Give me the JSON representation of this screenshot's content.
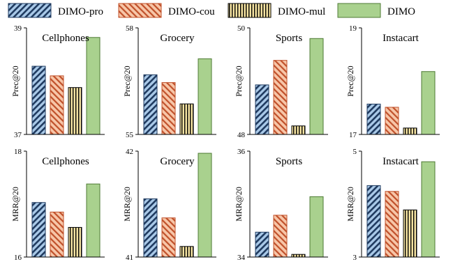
{
  "colors": {
    "pro_fill": "#a9c9e8",
    "pro_stripe": "#1f3a5f",
    "cou_fill": "#f7c6a8",
    "cou_stripe": "#c0502a",
    "mul_fill": "#f4e2a1",
    "mul_stripe": "#000000",
    "dimo_fill": "#a9d18e",
    "dimo_stroke": "#4e7a34"
  },
  "legend": {
    "items": [
      {
        "label": "DIMO-pro",
        "pattern": "pro"
      },
      {
        "label": "DIMO-cou",
        "pattern": "cou"
      },
      {
        "label": "DIMO-mul",
        "pattern": "mul"
      },
      {
        "label": "DIMO",
        "pattern": "dimo"
      }
    ]
  },
  "chart_data": [
    {
      "type": "bar",
      "title": "Cellphones",
      "ylabel": "Prec@20",
      "ylim": [
        37,
        39
      ],
      "yticks": [
        "37",
        "39"
      ],
      "series": [
        {
          "name": "DIMO-pro",
          "values": [
            38.28
          ]
        },
        {
          "name": "DIMO-cou",
          "values": [
            38.1
          ]
        },
        {
          "name": "DIMO-mul",
          "values": [
            37.88
          ]
        },
        {
          "name": "DIMO",
          "values": [
            38.82
          ]
        }
      ]
    },
    {
      "type": "bar",
      "title": "Grocery",
      "ylabel": "Prec@20",
      "ylim": [
        55,
        58
      ],
      "yticks": [
        "55",
        "58"
      ],
      "series": [
        {
          "name": "DIMO-pro",
          "values": [
            56.68
          ]
        },
        {
          "name": "DIMO-cou",
          "values": [
            56.46
          ]
        },
        {
          "name": "DIMO-mul",
          "values": [
            55.86
          ]
        },
        {
          "name": "DIMO",
          "values": [
            57.13
          ]
        }
      ]
    },
    {
      "type": "bar",
      "title": "Sports",
      "ylabel": "Prec@20",
      "ylim": [
        48,
        50
      ],
      "yticks": [
        "48",
        "50"
      ],
      "series": [
        {
          "name": "DIMO-pro",
          "values": [
            48.93
          ]
        },
        {
          "name": "DIMO-cou",
          "values": [
            49.39
          ]
        },
        {
          "name": "DIMO-mul",
          "values": [
            48.16
          ]
        },
        {
          "name": "DIMO",
          "values": [
            49.8
          ]
        }
      ]
    },
    {
      "type": "bar",
      "title": "Instacart",
      "ylabel": "Prec@20",
      "ylim": [
        17,
        19
      ],
      "yticks": [
        "17",
        "19"
      ],
      "series": [
        {
          "name": "DIMO-pro",
          "values": [
            17.57
          ]
        },
        {
          "name": "DIMO-cou",
          "values": [
            17.51
          ]
        },
        {
          "name": "DIMO-mul",
          "values": [
            17.12
          ]
        },
        {
          "name": "DIMO",
          "values": [
            18.18
          ]
        }
      ]
    },
    {
      "type": "bar",
      "title": "Cellphones",
      "ylabel": "MRR@20",
      "ylim": [
        16,
        18
      ],
      "yticks": [
        "16",
        "18"
      ],
      "series": [
        {
          "name": "DIMO-pro",
          "values": [
            17.03
          ]
        },
        {
          "name": "DIMO-cou",
          "values": [
            16.85
          ]
        },
        {
          "name": "DIMO-mul",
          "values": [
            16.56
          ]
        },
        {
          "name": "DIMO",
          "values": [
            17.38
          ]
        }
      ]
    },
    {
      "type": "bar",
      "title": "Grocery",
      "ylabel": "MRR@20",
      "ylim": [
        41,
        42
      ],
      "yticks": [
        "41",
        "42"
      ],
      "series": [
        {
          "name": "DIMO-pro",
          "values": [
            41.55
          ]
        },
        {
          "name": "DIMO-cou",
          "values": [
            41.37
          ]
        },
        {
          "name": "DIMO-mul",
          "values": [
            41.1
          ]
        },
        {
          "name": "DIMO",
          "values": [
            41.98
          ]
        }
      ]
    },
    {
      "type": "bar",
      "title": "Sports",
      "ylabel": "MRR@20",
      "ylim": [
        34,
        36
      ],
      "yticks": [
        "34",
        "36"
      ],
      "series": [
        {
          "name": "DIMO-pro",
          "values": [
            34.47
          ]
        },
        {
          "name": "DIMO-cou",
          "values": [
            34.79
          ]
        },
        {
          "name": "DIMO-mul",
          "values": [
            34.05
          ]
        },
        {
          "name": "DIMO",
          "values": [
            35.14
          ]
        }
      ]
    },
    {
      "type": "bar",
      "title": "Instacart",
      "ylabel": "MRR@20",
      "ylim": [
        3,
        5
      ],
      "yticks": [
        "3",
        "5"
      ],
      "series": [
        {
          "name": "DIMO-pro",
          "values": [
            4.35
          ]
        },
        {
          "name": "DIMO-cou",
          "values": [
            4.24
          ]
        },
        {
          "name": "DIMO-mul",
          "values": [
            3.89
          ]
        },
        {
          "name": "DIMO",
          "values": [
            4.8
          ]
        }
      ]
    }
  ]
}
